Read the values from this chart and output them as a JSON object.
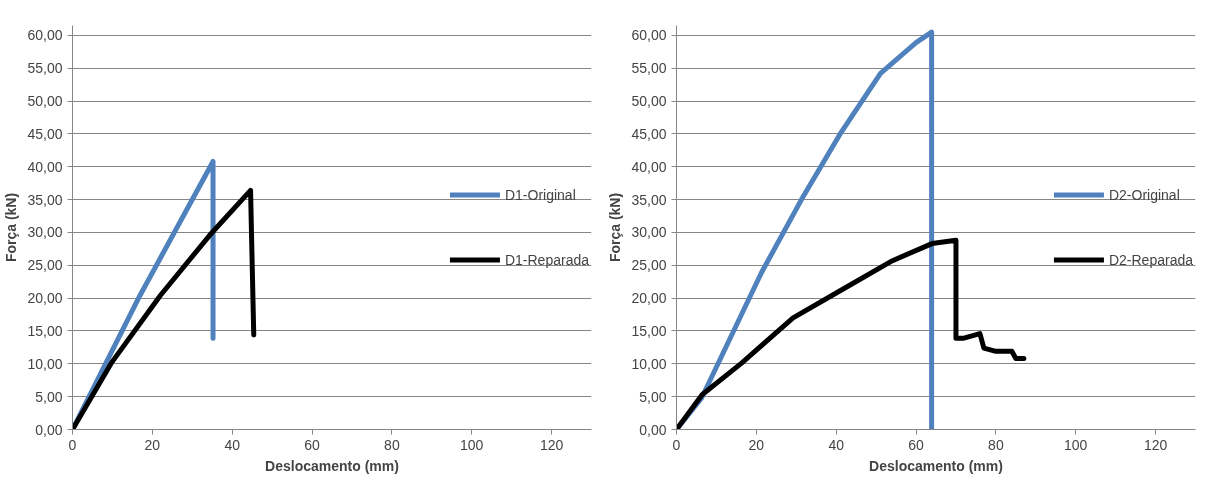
{
  "chart_data": [
    {
      "type": "line",
      "xlabel": "Deslocamento (mm)",
      "ylabel": "Força (kN)",
      "legend": "right",
      "grid": "y",
      "marker": "none",
      "line_style": "solid",
      "xlim": [
        0,
        130
      ],
      "xticks": [
        0,
        20,
        40,
        60,
        80,
        100,
        120
      ],
      "ylim": [
        0,
        61.5
      ],
      "yticks": [
        {
          "value": 0,
          "label": "0,00"
        },
        {
          "value": 5,
          "label": "5,00"
        },
        {
          "value": 10,
          "label": "10,00"
        },
        {
          "value": 15,
          "label": "15,00"
        },
        {
          "value": 20,
          "label": "20,00"
        },
        {
          "value": 25,
          "label": "25,00"
        },
        {
          "value": 30,
          "label": "30,00"
        },
        {
          "value": 35,
          "label": "35,00"
        },
        {
          "value": 40,
          "label": "40,00"
        },
        {
          "value": 45,
          "label": "45,00"
        },
        {
          "value": 50,
          "label": "50,00"
        },
        {
          "value": 55,
          "label": "55,00"
        },
        {
          "value": 60,
          "label": "60,00"
        }
      ],
      "series": [
        {
          "name": "D1-Original",
          "color": "#4f81bd",
          "x": [
            0,
            16.9,
            35.2,
            35.2
          ],
          "values": [
            0,
            20.4,
            40.8,
            13.9
          ]
        },
        {
          "name": "D1-Reparada",
          "color": "#000000",
          "x": [
            0,
            9.7,
            22,
            34.4,
            44.6,
            45.4
          ],
          "values": [
            0,
            10.1,
            20.4,
            29.6,
            36.4,
            14.4
          ]
        }
      ]
    },
    {
      "type": "line",
      "xlabel": "Deslocamento (mm)",
      "ylabel": "Força (kN)",
      "legend": "right",
      "grid": "y",
      "marker": "none",
      "line_style": "solid",
      "xlim": [
        0,
        130
      ],
      "xticks": [
        0,
        20,
        40,
        60,
        80,
        100,
        120
      ],
      "ylim": [
        0,
        61.5
      ],
      "yticks": [
        {
          "value": 0,
          "label": "0,00"
        },
        {
          "value": 5,
          "label": "5,00"
        },
        {
          "value": 10,
          "label": "10,00"
        },
        {
          "value": 15,
          "label": "15,00"
        },
        {
          "value": 20,
          "label": "20,00"
        },
        {
          "value": 25,
          "label": "25,00"
        },
        {
          "value": 30,
          "label": "30,00"
        },
        {
          "value": 35,
          "label": "35,00"
        },
        {
          "value": 40,
          "label": "40,00"
        },
        {
          "value": 45,
          "label": "45,00"
        },
        {
          "value": 50,
          "label": "50,00"
        },
        {
          "value": 55,
          "label": "55,00"
        },
        {
          "value": 60,
          "label": "60,00"
        }
      ],
      "series": [
        {
          "name": "D2-Original",
          "color": "#4f81bd",
          "x": [
            0,
            6.3,
            21.3,
            31.3,
            41.2,
            51.1,
            60,
            63.9,
            63.9
          ],
          "values": [
            0,
            4.8,
            23.9,
            35,
            45.2,
            54.2,
            58.9,
            60.5,
            0
          ]
        },
        {
          "name": "D2-Reparada",
          "color": "#000000",
          "x": [
            0,
            6.4,
            16.3,
            29.2,
            41.2,
            54.1,
            64,
            70,
            70,
            72,
            76,
            77,
            80,
            84,
            85,
            87
          ],
          "values": [
            0,
            5.3,
            10.1,
            17,
            21.2,
            25.7,
            28.3,
            28.8,
            13.9,
            13.9,
            14.6,
            12.4,
            11.9,
            11.9,
            10.8,
            10.8
          ]
        }
      ]
    }
  ]
}
